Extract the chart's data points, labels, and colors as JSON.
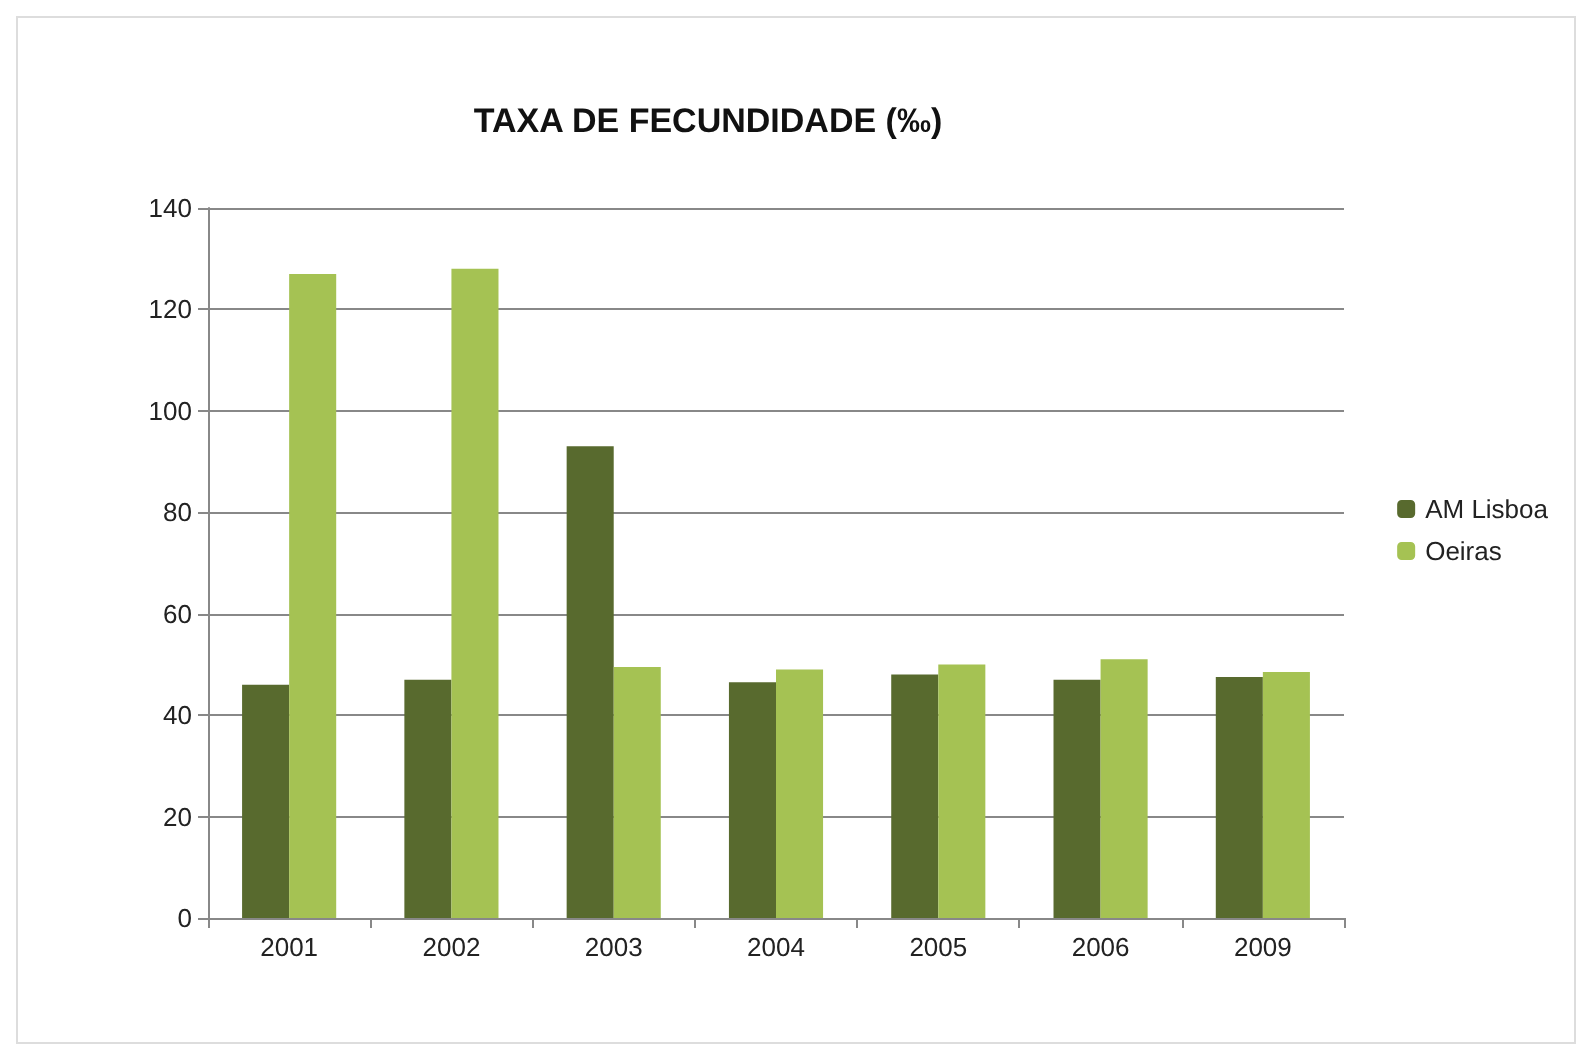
{
  "chart_data": {
    "type": "bar",
    "title": "TAXA DE FECUNDIDADE (‰)",
    "categories": [
      "2001",
      "2002",
      "2003",
      "2004",
      "2005",
      "2006",
      "2009"
    ],
    "series": [
      {
        "name": "AM Lisboa",
        "color": "#586a2e",
        "values": [
          46,
          47,
          93,
          46.5,
          48,
          47,
          47.5
        ]
      },
      {
        "name": "Oeiras",
        "color": "#a5c253",
        "values": [
          127,
          128,
          49.5,
          49,
          50,
          51,
          48.5
        ]
      }
    ],
    "ylim": [
      0,
      140
    ],
    "yticks": [
      0,
      20,
      40,
      60,
      80,
      100,
      120,
      140
    ],
    "grid": "y",
    "legend": "right"
  }
}
